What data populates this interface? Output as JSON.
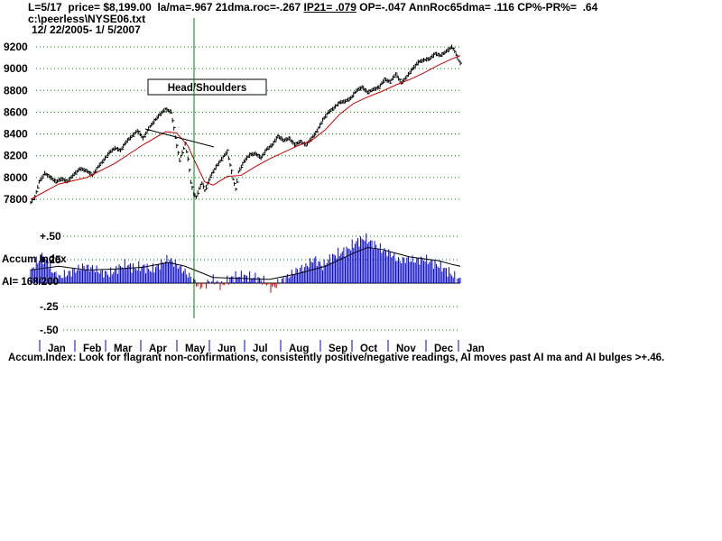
{
  "header": {
    "line1_a": "L=5/17  price= $8,199.00  la/ma=.967 21dma.roc=-.267 ",
    "ip21": "IP21= .079",
    "line1_b": " OP=-.047 AnnRoc65dma= .116 CP%-PR%=  .64",
    "file": "c:\\peerless\\NYSE06.txt",
    "dates": "12/ 22/2005- 1/ 5/2007"
  },
  "note": "Accum.Index: Look for flagrant non-confirmations, consistently positive/negative readings, AI moves past AI ma and AI bulges >+.46.",
  "colors": {
    "price_bars": "#000000",
    "moving_average": "#cc0000",
    "grid": "#008000",
    "marker_line": "#008000",
    "ai_positive": "#0000c8",
    "ai_negative": "#cc0000",
    "ai_ma": "#000000"
  },
  "chart_data": [
    {
      "type": "line",
      "description_series": "NYSE daily high-low bars with 21-day moving average",
      "y_ticks": [
        "9200",
        "9000",
        "8800",
        "8600",
        "8400",
        "8200",
        "8000",
        "7800"
      ],
      "ylim": [
        7700,
        9250
      ],
      "x_tick_labels": [
        "Jan",
        "Feb",
        "Mar",
        "Apr",
        "May",
        "Jun",
        "Jul",
        "Aug",
        "Sep",
        "Oct",
        "Nov",
        "Dec",
        "Jan"
      ],
      "annotation": "Head/Shoulders",
      "vertical_marker_month": "May",
      "price_path": [
        [
          0,
          7770
        ],
        [
          3,
          7820
        ],
        [
          6,
          7960
        ],
        [
          10,
          8040
        ],
        [
          14,
          8000
        ],
        [
          18,
          7960
        ],
        [
          22,
          7990
        ],
        [
          26,
          7960
        ],
        [
          30,
          8020
        ],
        [
          35,
          8080
        ],
        [
          40,
          8060
        ],
        [
          44,
          8020
        ],
        [
          48,
          8100
        ],
        [
          52,
          8160
        ],
        [
          56,
          8230
        ],
        [
          60,
          8270
        ],
        [
          64,
          8250
        ],
        [
          68,
          8330
        ],
        [
          72,
          8380
        ],
        [
          76,
          8430
        ],
        [
          80,
          8360
        ],
        [
          84,
          8450
        ],
        [
          88,
          8520
        ],
        [
          92,
          8580
        ],
        [
          96,
          8630
        ],
        [
          100,
          8600
        ],
        [
          102,
          8450
        ],
        [
          104,
          8290
        ],
        [
          106,
          8160
        ],
        [
          108,
          8230
        ],
        [
          110,
          8310
        ],
        [
          112,
          8170
        ],
        [
          114,
          7960
        ],
        [
          116,
          7850
        ],
        [
          118,
          7820
        ],
        [
          120,
          7900
        ],
        [
          122,
          7950
        ],
        [
          124,
          7880
        ],
        [
          128,
          8010
        ],
        [
          132,
          8100
        ],
        [
          136,
          8170
        ],
        [
          140,
          8240
        ],
        [
          144,
          7990
        ],
        [
          146,
          7890
        ],
        [
          148,
          8050
        ],
        [
          152,
          8150
        ],
        [
          156,
          8210
        ],
        [
          160,
          8220
        ],
        [
          164,
          8180
        ],
        [
          168,
          8260
        ],
        [
          172,
          8300
        ],
        [
          176,
          8380
        ],
        [
          180,
          8340
        ],
        [
          184,
          8360
        ],
        [
          188,
          8300
        ],
        [
          192,
          8330
        ],
        [
          196,
          8300
        ],
        [
          200,
          8360
        ],
        [
          204,
          8430
        ],
        [
          208,
          8530
        ],
        [
          212,
          8600
        ],
        [
          216,
          8640
        ],
        [
          220,
          8690
        ],
        [
          224,
          8700
        ],
        [
          228,
          8730
        ],
        [
          232,
          8800
        ],
        [
          236,
          8830
        ],
        [
          240,
          8780
        ],
        [
          244,
          8810
        ],
        [
          248,
          8830
        ],
        [
          252,
          8900
        ],
        [
          256,
          8880
        ],
        [
          260,
          8950
        ],
        [
          264,
          8870
        ],
        [
          268,
          8930
        ],
        [
          272,
          9000
        ],
        [
          276,
          9060
        ],
        [
          280,
          9080
        ],
        [
          284,
          9090
        ],
        [
          288,
          9140
        ],
        [
          292,
          9120
        ],
        [
          296,
          9160
        ],
        [
          300,
          9200
        ],
        [
          302,
          9160
        ],
        [
          304,
          9100
        ],
        [
          306,
          9050
        ]
      ],
      "ma_path": [
        [
          0,
          7800
        ],
        [
          20,
          7940
        ],
        [
          40,
          8000
        ],
        [
          60,
          8130
        ],
        [
          80,
          8300
        ],
        [
          96,
          8420
        ],
        [
          104,
          8410
        ],
        [
          112,
          8290
        ],
        [
          118,
          8120
        ],
        [
          124,
          7960
        ],
        [
          130,
          7930
        ],
        [
          140,
          8010
        ],
        [
          150,
          8020
        ],
        [
          160,
          8100
        ],
        [
          170,
          8170
        ],
        [
          180,
          8230
        ],
        [
          190,
          8290
        ],
        [
          200,
          8340
        ],
        [
          210,
          8440
        ],
        [
          220,
          8580
        ],
        [
          230,
          8680
        ],
        [
          240,
          8740
        ],
        [
          250,
          8790
        ],
        [
          260,
          8850
        ],
        [
          270,
          8900
        ],
        [
          280,
          8960
        ],
        [
          290,
          9030
        ],
        [
          300,
          9090
        ],
        [
          306,
          9120
        ]
      ]
    },
    {
      "type": "bar",
      "title": "Accum Index",
      "readout": "AI= 168/200",
      "y_ticks": [
        "+.50",
        "+.25",
        "-.25",
        "-.50"
      ],
      "ylim": [
        -0.5,
        0.5
      ],
      "ai_path": [
        [
          0,
          0.12
        ],
        [
          4,
          0.22
        ],
        [
          8,
          0.28
        ],
        [
          12,
          0.22
        ],
        [
          16,
          0.12
        ],
        [
          20,
          0.06
        ],
        [
          26,
          0.1
        ],
        [
          32,
          0.14
        ],
        [
          38,
          0.18
        ],
        [
          44,
          0.16
        ],
        [
          50,
          0.12
        ],
        [
          56,
          0.1
        ],
        [
          62,
          0.16
        ],
        [
          68,
          0.2
        ],
        [
          74,
          0.16
        ],
        [
          80,
          0.18
        ],
        [
          86,
          0.14
        ],
        [
          92,
          0.2
        ],
        [
          98,
          0.26
        ],
        [
          104,
          0.2
        ],
        [
          110,
          0.12
        ],
        [
          116,
          0.03
        ],
        [
          120,
          -0.04
        ],
        [
          124,
          -0.02
        ],
        [
          130,
          0.04
        ],
        [
          136,
          -0.03
        ],
        [
          142,
          0.05
        ],
        [
          148,
          0.08
        ],
        [
          154,
          0.07
        ],
        [
          160,
          0.06
        ],
        [
          166,
          0.02
        ],
        [
          172,
          -0.06
        ],
        [
          178,
          0.02
        ],
        [
          184,
          0.08
        ],
        [
          190,
          0.14
        ],
        [
          196,
          0.18
        ],
        [
          202,
          0.26
        ],
        [
          208,
          0.18
        ],
        [
          214,
          0.28
        ],
        [
          220,
          0.32
        ],
        [
          226,
          0.36
        ],
        [
          232,
          0.44
        ],
        [
          238,
          0.48
        ],
        [
          244,
          0.42
        ],
        [
          250,
          0.36
        ],
        [
          256,
          0.32
        ],
        [
          262,
          0.24
        ],
        [
          268,
          0.26
        ],
        [
          274,
          0.24
        ],
        [
          280,
          0.26
        ],
        [
          286,
          0.22
        ],
        [
          292,
          0.18
        ],
        [
          298,
          0.12
        ],
        [
          304,
          0.04
        ]
      ],
      "ai_ma_path": [
        [
          0,
          0.14
        ],
        [
          20,
          0.18
        ],
        [
          40,
          0.14
        ],
        [
          60,
          0.15
        ],
        [
          80,
          0.17
        ],
        [
          98,
          0.22
        ],
        [
          110,
          0.18
        ],
        [
          120,
          0.12
        ],
        [
          130,
          0.06
        ],
        [
          150,
          0.05
        ],
        [
          170,
          0.04
        ],
        [
          190,
          0.1
        ],
        [
          210,
          0.18
        ],
        [
          230,
          0.32
        ],
        [
          240,
          0.38
        ],
        [
          250,
          0.36
        ],
        [
          260,
          0.32
        ],
        [
          270,
          0.28
        ],
        [
          280,
          0.26
        ],
        [
          290,
          0.24
        ],
        [
          300,
          0.2
        ],
        [
          306,
          0.18
        ]
      ]
    }
  ]
}
